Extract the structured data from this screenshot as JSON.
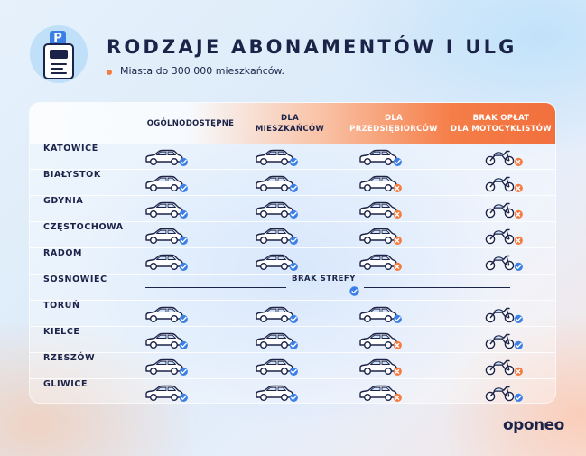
{
  "header": {
    "title": "RODZAJE ABONAMENTÓW I ULG",
    "subtitle": "Miasta do 300 000 mieszkańców.",
    "badge_letter": "P"
  },
  "columns": [
    {
      "label": "OGÓLNODOSTĘPNE"
    },
    {
      "label": "DLA\nMIESZKAŃCÓW"
    },
    {
      "label": "DLA\nPRZEDSIĘBIORCÓW"
    },
    {
      "label": "BRAK OPŁAT\nDLA MOTOCYKLISTÓW"
    }
  ],
  "rows": [
    {
      "city": "KATOWICE",
      "cells": [
        "check",
        "check",
        "check",
        "cross"
      ]
    },
    {
      "city": "BIAŁYSTOK",
      "cells": [
        "check",
        "check",
        "cross",
        "cross"
      ]
    },
    {
      "city": "GDYNIA",
      "cells": [
        "check",
        "check",
        "cross",
        "cross"
      ]
    },
    {
      "city": "CZĘSTOCHOWA",
      "cells": [
        "check",
        "check",
        "cross",
        "cross"
      ]
    },
    {
      "city": "RADOM",
      "cells": [
        "check",
        "check",
        "cross",
        "check"
      ]
    },
    {
      "city": "SOSNOWIEC",
      "no_zone": true
    },
    {
      "city": "TORUŃ",
      "cells": [
        "check",
        "check",
        "check",
        "check"
      ]
    },
    {
      "city": "KIELCE",
      "cells": [
        "check",
        "check",
        "cross",
        "check"
      ]
    },
    {
      "city": "RZESZÓW",
      "cells": [
        "check",
        "check",
        "cross",
        "cross"
      ]
    },
    {
      "city": "GLIWICE",
      "cells": [
        "check",
        "check",
        "cross",
        "check"
      ]
    }
  ],
  "no_zone_label": "BRAK STREFY",
  "brand": "oponeo",
  "colors": {
    "navy": "#1c2348",
    "check": "#3b7fe6",
    "cross": "#f47a40",
    "accent": "#f26f3c"
  },
  "icons": {
    "car": "car-icon",
    "motorcycle": "motorcycle-icon",
    "check": "check-badge-icon",
    "cross": "cross-badge-icon"
  }
}
